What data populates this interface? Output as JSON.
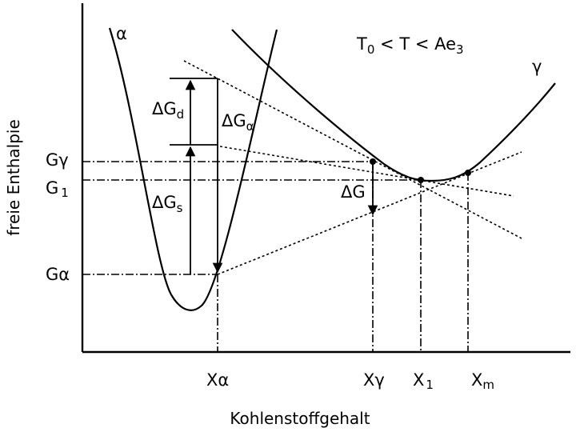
{
  "axes": {
    "x_title": "Kohlenstoffgehalt",
    "y_title": "freie Enthalpie"
  },
  "condition": {
    "t0": "T",
    "t0_sub": "0",
    "mid": " < T < ",
    "ae": "Ae",
    "ae_sub": "3"
  },
  "curves": {
    "alpha": "α",
    "gamma": "γ"
  },
  "y_labels": {
    "g_gamma": "G",
    "g_gamma_sub": "γ",
    "g1": "G",
    "g1_sub": "1",
    "g_alpha": "G",
    "g_alpha_sub": "α"
  },
  "x_labels": {
    "x_alpha": "X",
    "x_alpha_sub": "α",
    "x_gamma": "X",
    "x_gamma_sub": "γ",
    "x1": "X",
    "x1_sub": "1",
    "xm": "X",
    "xm_sub": "m"
  },
  "deltas": {
    "dgd": "ΔG",
    "dgd_sub": "d",
    "dga": "ΔG",
    "dga_sub": "α",
    "dgs": "ΔG",
    "dgs_sub": "s",
    "dg": "ΔG"
  }
}
